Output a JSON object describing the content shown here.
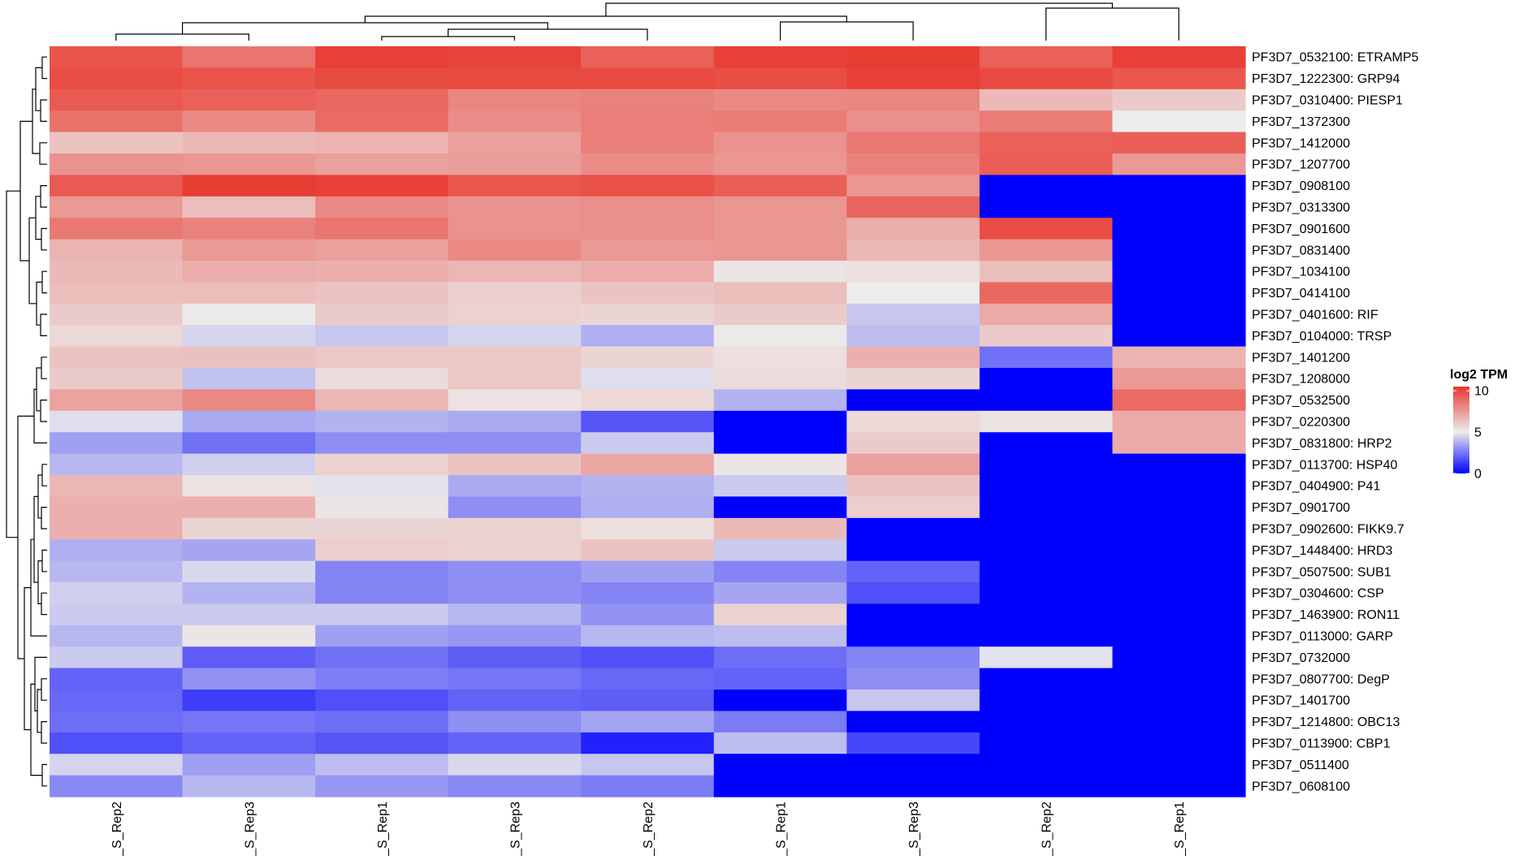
{
  "chart_data": {
    "type": "heatmap",
    "legend": {
      "title": "log2 TPM",
      "ticks": [
        10,
        5,
        0
      ],
      "position": "right",
      "colors": {
        "low": "#0000ff",
        "mid": "#ececec",
        "high": "#e8362c"
      },
      "range": [
        0,
        10.5
      ]
    },
    "columns": [
      "_S_Rep2",
      "_S_Rep3",
      "_S_Rep1",
      "_S_Rep3",
      "_S_Rep2",
      "_S_Rep1",
      "_S_Rep3",
      "_S_Rep2",
      "_S_Rep1"
    ],
    "rows": [
      "PF3D7_0532100: ETRAMP5",
      "PF3D7_1222300: GRP94",
      "PF3D7_0310400: PIESP1",
      "PF3D7_1372300",
      "PF3D7_1412000",
      "PF3D7_1207700",
      "PF3D7_0908100",
      "PF3D7_0313300",
      "PF3D7_0901600",
      "PF3D7_0831400",
      "PF3D7_1034100",
      "PF3D7_0414100",
      "PF3D7_0401600: RIF",
      "PF3D7_0104000: TRSP",
      "PF3D7_1401200",
      "PF3D7_1208000",
      "PF3D7_0532500",
      "PF3D7_0220300",
      "PF3D7_0831800: HRP2",
      "PF3D7_0113700: HSP40",
      "PF3D7_0404900: P41",
      "PF3D7_0901700",
      "PF3D7_0902600: FIKK9.7",
      "PF3D7_1448400: HRD3",
      "PF3D7_0507500: SUB1",
      "PF3D7_0304600: CSP",
      "PF3D7_1463900: RON11",
      "PF3D7_0113000: GARP",
      "PF3D7_0732000",
      "PF3D7_0807700: DegP",
      "PF3D7_1401700",
      "PF3D7_1214800: OBC13",
      "PF3D7_0113900: CBP1",
      "PF3D7_0511400",
      "PF3D7_0608100"
    ],
    "values": [
      [
        9.6,
        8.6,
        10.2,
        10.1,
        9.2,
        10.2,
        10.3,
        9.2,
        10.2
      ],
      [
        9.8,
        9.6,
        9.9,
        9.9,
        9.9,
        9.8,
        10.2,
        9.9,
        9.5
      ],
      [
        9.4,
        9.2,
        9.0,
        8.1,
        8.2,
        8.0,
        8.1,
        6.5,
        6.0
      ],
      [
        8.7,
        8.0,
        8.9,
        7.9,
        8.3,
        8.4,
        7.8,
        8.4,
        5.0
      ],
      [
        6.2,
        6.6,
        6.7,
        7.3,
        8.3,
        7.7,
        8.5,
        9.2,
        9.3
      ],
      [
        7.7,
        7.6,
        7.3,
        7.4,
        7.9,
        7.6,
        8.2,
        9.3,
        7.5
      ],
      [
        9.4,
        10.3,
        10.2,
        9.5,
        9.7,
        9.3,
        7.6,
        0.0,
        0.0
      ],
      [
        7.5,
        6.4,
        8.0,
        7.7,
        7.8,
        7.6,
        9.1,
        0.0,
        0.0
      ],
      [
        8.5,
        8.2,
        8.6,
        7.7,
        7.8,
        7.6,
        6.9,
        9.8,
        0.0
      ],
      [
        6.7,
        7.5,
        7.3,
        8.0,
        7.5,
        7.6,
        6.6,
        7.6,
        0.0
      ],
      [
        6.5,
        6.9,
        6.8,
        6.6,
        6.9,
        5.2,
        5.4,
        6.4,
        0.0
      ],
      [
        6.4,
        6.4,
        6.2,
        5.9,
        6.2,
        6.4,
        5.0,
        9.0,
        0.0
      ],
      [
        6.0,
        5.1,
        6.0,
        5.8,
        5.7,
        6.0,
        4.2,
        7.0,
        0.0
      ],
      [
        5.6,
        4.5,
        4.2,
        4.5,
        3.7,
        5.1,
        4.0,
        6.0,
        0.0
      ],
      [
        6.2,
        6.3,
        6.1,
        6.1,
        5.7,
        5.4,
        6.8,
        2.4,
        6.7
      ],
      [
        6.0,
        4.1,
        5.5,
        6.1,
        4.7,
        5.5,
        5.7,
        0.0,
        7.5
      ],
      [
        7.2,
        8.0,
        6.6,
        5.3,
        5.6,
        3.8,
        0.0,
        0.0,
        8.9
      ],
      [
        4.7,
        3.6,
        3.8,
        3.6,
        1.8,
        0.0,
        5.6,
        5.3,
        7.0
      ],
      [
        3.4,
        2.4,
        3.0,
        3.0,
        4.3,
        0.0,
        6.0,
        0.0,
        7.0
      ],
      [
        3.9,
        4.4,
        5.8,
        6.2,
        7.1,
        5.2,
        7.3,
        0.0,
        0.0
      ],
      [
        6.6,
        5.3,
        4.8,
        3.6,
        3.8,
        4.3,
        6.2,
        0.0,
        0.0
      ],
      [
        6.8,
        6.8,
        5.2,
        3.0,
        3.7,
        0.0,
        5.9,
        0.0,
        0.0
      ],
      [
        6.8,
        5.7,
        5.7,
        5.8,
        5.4,
        6.5,
        0.0,
        0.0,
        0.0
      ],
      [
        3.7,
        3.5,
        5.9,
        5.8,
        6.2,
        4.3,
        0.0,
        0.0,
        0.0
      ],
      [
        3.9,
        4.6,
        2.8,
        3.0,
        3.4,
        2.8,
        2.1,
        0.0,
        0.0
      ],
      [
        4.4,
        3.8,
        2.8,
        3.0,
        2.8,
        3.5,
        1.7,
        0.0,
        0.0
      ],
      [
        4.3,
        4.3,
        4.3,
        3.9,
        3.1,
        5.8,
        0.0,
        0.0,
        0.0
      ],
      [
        3.9,
        5.2,
        3.4,
        3.2,
        3.9,
        4.0,
        0.0,
        0.0,
        0.0
      ],
      [
        4.3,
        2.0,
        2.4,
        2.0,
        1.7,
        2.3,
        2.8,
        4.8,
        0.0
      ],
      [
        2.1,
        3.1,
        2.7,
        2.5,
        2.2,
        2.1,
        3.0,
        0.0,
        0.0
      ],
      [
        2.2,
        1.3,
        1.7,
        2.1,
        2.0,
        0.0,
        4.2,
        0.0,
        0.0
      ],
      [
        2.3,
        2.5,
        2.3,
        3.0,
        3.5,
        2.6,
        0.0,
        0.0,
        0.0
      ],
      [
        1.7,
        2.1,
        1.8,
        2.1,
        0.7,
        4.0,
        1.5,
        0.0,
        0.0
      ],
      [
        4.5,
        3.4,
        4.0,
        4.6,
        4.2,
        0.0,
        0.0,
        0.0,
        0.0
      ],
      [
        2.9,
        3.9,
        3.2,
        2.9,
        2.6,
        0.0,
        0.0,
        0.0,
        0.0
      ]
    ],
    "title": "",
    "xlabel": "",
    "ylabel": ""
  }
}
